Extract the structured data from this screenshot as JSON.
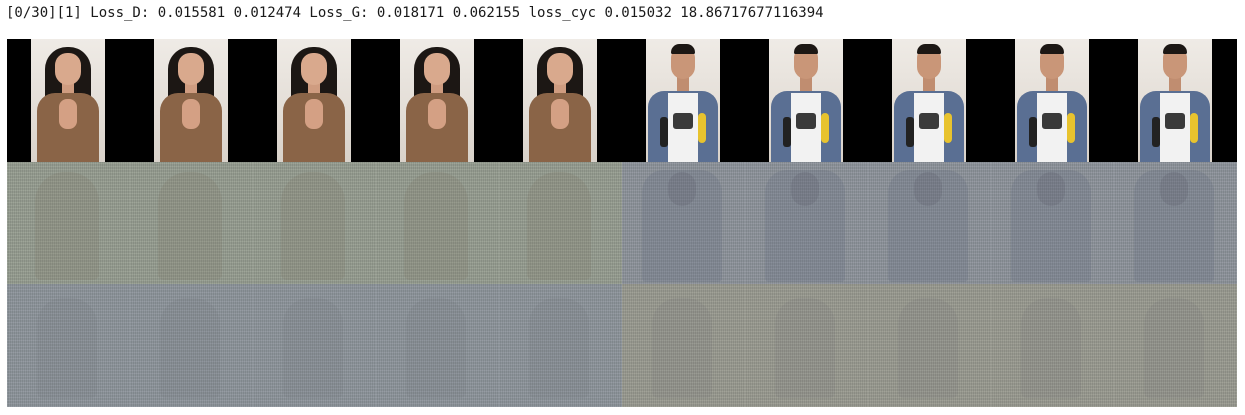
{
  "log": {
    "text": "[0/30][1] Loss_D: 0.015581 0.012474 Loss_G: 0.018171 0.062155 loss_cyc 0.015032 18.86717677116394"
  },
  "grid": {
    "rows": [
      {
        "kind": "real",
        "tiles": [
          "female",
          "female",
          "female",
          "female",
          "female",
          "male",
          "male",
          "male",
          "male",
          "male"
        ]
      },
      {
        "kind": "generated",
        "tiles": [
          "female",
          "female",
          "female",
          "female",
          "female",
          "male",
          "male",
          "male",
          "male",
          "male"
        ]
      },
      {
        "kind": "reconstructed",
        "tiles": [
          "female",
          "female",
          "female",
          "female",
          "female",
          "male",
          "male",
          "male",
          "male",
          "male"
        ]
      }
    ]
  }
}
